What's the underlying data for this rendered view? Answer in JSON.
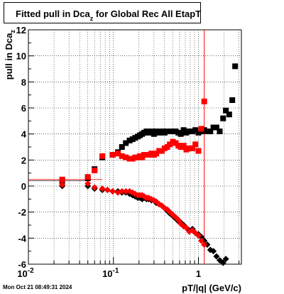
{
  "title": {
    "text_before": "Fitted pull in Dca",
    "subscript": "z",
    "text_after": " for Global Rec All EtapT"
  },
  "timestamp": "Mon Oct 21 08:49:31 2024",
  "chart_data": {
    "type": "scatter",
    "title": "Fitted pull in Dca_z for Global Rec All EtapT",
    "xlabel": "pT/|q| (GeV/c)",
    "ylabel": "pull in Dca_z",
    "xscale": "log",
    "xlim": [
      0.01,
      3.2
    ],
    "ylim": [
      -6,
      12
    ],
    "yticks": [
      -6,
      -4,
      -2,
      0,
      2,
      4,
      6,
      8,
      10,
      12
    ],
    "xtick_labels": [
      "10^-2",
      "10^-1",
      "1"
    ],
    "grid": true,
    "series": [
      {
        "color": "#000000",
        "marker": "square",
        "x": [
          0.025,
          0.05,
          0.06,
          0.074,
          0.098,
          0.113,
          0.126,
          0.14,
          0.155,
          0.168,
          0.18,
          0.193,
          0.205,
          0.218,
          0.23,
          0.245,
          0.26,
          0.28,
          0.3,
          0.32,
          0.345,
          0.37,
          0.4,
          0.43,
          0.46,
          0.5,
          0.54,
          0.58,
          0.62,
          0.67,
          0.72,
          0.78,
          0.85,
          0.92,
          1.0,
          1.08,
          1.17,
          1.27,
          1.38,
          1.5,
          1.63,
          1.78,
          1.95,
          2.1,
          2.3,
          2.5,
          2.7
        ],
        "y": [
          0.4,
          0.6,
          1.3,
          2.2,
          2.4,
          2.6,
          3.0,
          3.3,
          3.5,
          3.6,
          3.7,
          3.8,
          3.9,
          4.0,
          4.1,
          4.2,
          4.1,
          4.2,
          4.0,
          4.2,
          4.1,
          4.2,
          4.1,
          4.2,
          4.2,
          4.2,
          4.2,
          4.1,
          4.0,
          4.3,
          4.1,
          4.2,
          4.2,
          4.3,
          4.1,
          4.2,
          4.3,
          4.2,
          4.2,
          4.5,
          4.5,
          4.2,
          5.2,
          5.8,
          5.5,
          6.6,
          9.2
        ]
      },
      {
        "color": "#ff0000",
        "marker": "square",
        "x": [
          0.025,
          0.05,
          0.06,
          0.074,
          0.098,
          0.113,
          0.126,
          0.14,
          0.155,
          0.168,
          0.18,
          0.193,
          0.205,
          0.218,
          0.23,
          0.245,
          0.26,
          0.28,
          0.3,
          0.32,
          0.345,
          0.37,
          0.4,
          0.43,
          0.46,
          0.5,
          0.54,
          0.58,
          0.62,
          0.67,
          0.72,
          0.78,
          0.85,
          0.92,
          1.0,
          1.08,
          1.17
        ],
        "y": [
          0.5,
          0.7,
          1.2,
          2.3,
          2.4,
          2.5,
          2.3,
          2.2,
          2.1,
          2.1,
          2.2,
          2.2,
          2.3,
          2.2,
          2.4,
          2.4,
          2.4,
          2.5,
          2.4,
          2.5,
          2.7,
          2.7,
          2.9,
          3.0,
          3.2,
          3.4,
          3.3,
          3.1,
          3.0,
          3.1,
          2.8,
          2.9,
          2.9,
          3.2,
          2.7,
          4.4,
          6.5
        ]
      },
      {
        "color": "#000000",
        "marker": "diamond",
        "x": [
          0.025,
          0.05,
          0.06,
          0.074,
          0.085,
          0.098,
          0.113,
          0.126,
          0.14,
          0.155,
          0.168,
          0.18,
          0.193,
          0.205,
          0.218,
          0.23,
          0.245,
          0.26,
          0.28,
          0.3,
          0.32,
          0.345,
          0.37,
          0.4,
          0.43,
          0.46,
          0.5,
          0.54,
          0.58,
          0.62,
          0.67,
          0.72,
          0.78,
          0.85,
          0.92,
          1.0,
          1.08,
          1.17,
          1.27,
          1.38,
          1.5,
          1.63,
          1.78,
          1.95,
          2.1
        ],
        "y": [
          0.0,
          0.0,
          -0.2,
          -0.3,
          -0.3,
          -0.4,
          -0.4,
          -0.5,
          -0.5,
          -0.6,
          -0.7,
          -0.8,
          -0.9,
          -0.9,
          -1.0,
          -0.9,
          -1.0,
          -1.0,
          -1.1,
          -1.1,
          -1.3,
          -1.4,
          -1.5,
          -1.7,
          -1.9,
          -2.1,
          -2.3,
          -2.5,
          -2.7,
          -2.8,
          -3.0,
          -3.2,
          -3.4,
          -3.3,
          -3.6,
          -3.7,
          -3.9,
          -4.2,
          -4.5,
          -4.9,
          -5.0,
          -5.4,
          -5.7,
          -5.9,
          -5.6
        ]
      },
      {
        "color": "#ff0000",
        "marker": "diamond",
        "x": [
          0.025,
          0.05,
          0.06,
          0.074,
          0.085,
          0.098,
          0.113,
          0.126,
          0.14,
          0.155,
          0.168,
          0.18,
          0.193,
          0.205,
          0.218,
          0.23,
          0.245,
          0.26,
          0.28,
          0.3,
          0.32,
          0.345,
          0.37,
          0.4,
          0.43,
          0.46,
          0.5,
          0.54,
          0.58,
          0.62,
          0.67,
          0.72,
          0.78,
          0.85,
          0.92,
          1.0,
          1.08,
          1.17
        ],
        "y": [
          0.1,
          0.2,
          -0.1,
          -0.2,
          -0.3,
          -0.4,
          -0.5,
          -0.4,
          -0.4,
          -0.4,
          -0.5,
          -0.6,
          -0.7,
          -0.7,
          -0.7,
          -0.8,
          -0.9,
          -0.9,
          -1.0,
          -1.1,
          -1.2,
          -1.4,
          -1.5,
          -1.7,
          -1.8,
          -2.0,
          -2.2,
          -2.4,
          -2.6,
          -2.9,
          -3.1,
          -3.2,
          -3.5,
          -3.4,
          -3.6,
          -3.8,
          -4.2,
          -4.5
        ]
      }
    ],
    "error_bars": [
      {
        "color": "#ff0000",
        "x": 1.17,
        "y_low": -6,
        "y_high": 12
      }
    ]
  }
}
